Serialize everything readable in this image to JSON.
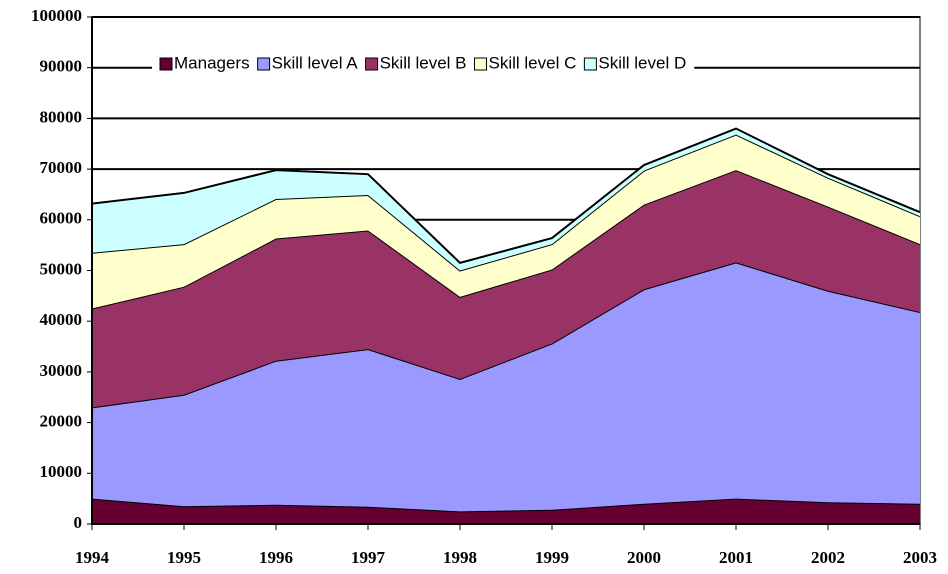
{
  "chart_data": {
    "type": "stacked-area",
    "categories": [
      "1994",
      "1995",
      "1996",
      "1997",
      "1998",
      "1999",
      "2000",
      "2001",
      "2002",
      "2003"
    ],
    "series": [
      {
        "name": "Managers",
        "color": "#660033",
        "values": [
          5000,
          3500,
          3800,
          3400,
          2500,
          2800,
          4000,
          5000,
          4300,
          4000
        ]
      },
      {
        "name": "Skill level A",
        "color": "#9999ff",
        "values": [
          18000,
          22000,
          28400,
          31100,
          26100,
          32800,
          42300,
          46600,
          41700,
          37800
        ]
      },
      {
        "name": "Skill level B",
        "color": "#993366",
        "values": [
          19500,
          21300,
          24100,
          23400,
          16200,
          14600,
          16700,
          18200,
          16600,
          13400
        ]
      },
      {
        "name": "Skill level C",
        "color": "#ffffcc",
        "values": [
          11000,
          8400,
          7800,
          7000,
          5200,
          5000,
          6700,
          7000,
          5700,
          5500
        ]
      },
      {
        "name": "Skill level D",
        "color": "#ccffff",
        "values": [
          9700,
          10100,
          5700,
          4100,
          1500,
          1200,
          1100,
          1200,
          700,
          800
        ]
      }
    ],
    "ylim": [
      0,
      100000
    ],
    "yticks": [
      0,
      10000,
      20000,
      30000,
      40000,
      50000,
      60000,
      70000,
      80000,
      90000,
      100000
    ],
    "grid": true,
    "legend": "top"
  }
}
